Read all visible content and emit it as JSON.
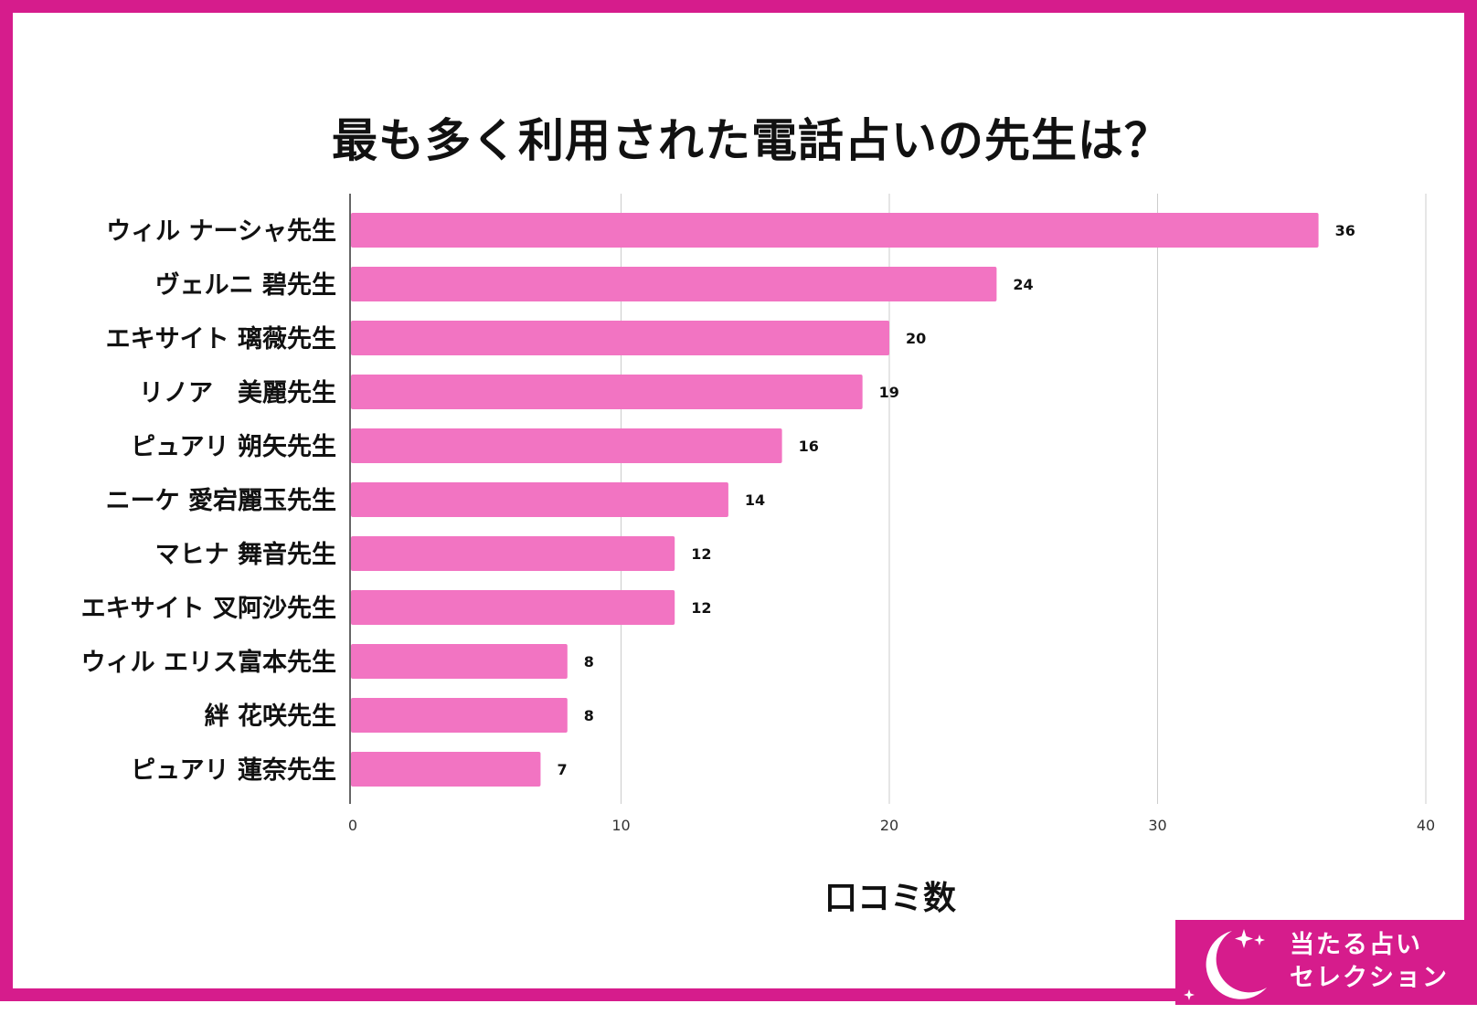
{
  "title": "最も多く利用された電話占いの先生は？",
  "brand": {
    "line1": "当たる占い",
    "line2": "セレクション",
    "color": "#d61c8c"
  },
  "chart_data": {
    "type": "bar",
    "orientation": "horizontal",
    "title": "最も多く利用された電話占いの先生は？",
    "xlabel": "口コミ数",
    "ylabel": "",
    "xlim": [
      0,
      40
    ],
    "xticks": [
      0,
      10,
      20,
      30,
      40
    ],
    "grid": true,
    "bar_color": "#f274c2",
    "categories": [
      "ウィル ナーシャ先生",
      "ヴェルニ 碧先生",
      "エキサイト 璃薇先生",
      "リノア　美麗先生",
      "ピュアリ 朔矢先生",
      "ニーケ 愛宕麗玉先生",
      "マヒナ 舞音先生",
      "エキサイト 叉阿沙先生",
      "ウィル エリス富本先生",
      "絆 花咲先生",
      "ピュアリ 蓮奈先生"
    ],
    "values": [
      36,
      24,
      20,
      19,
      16,
      14,
      12,
      12,
      8,
      8,
      7
    ]
  }
}
